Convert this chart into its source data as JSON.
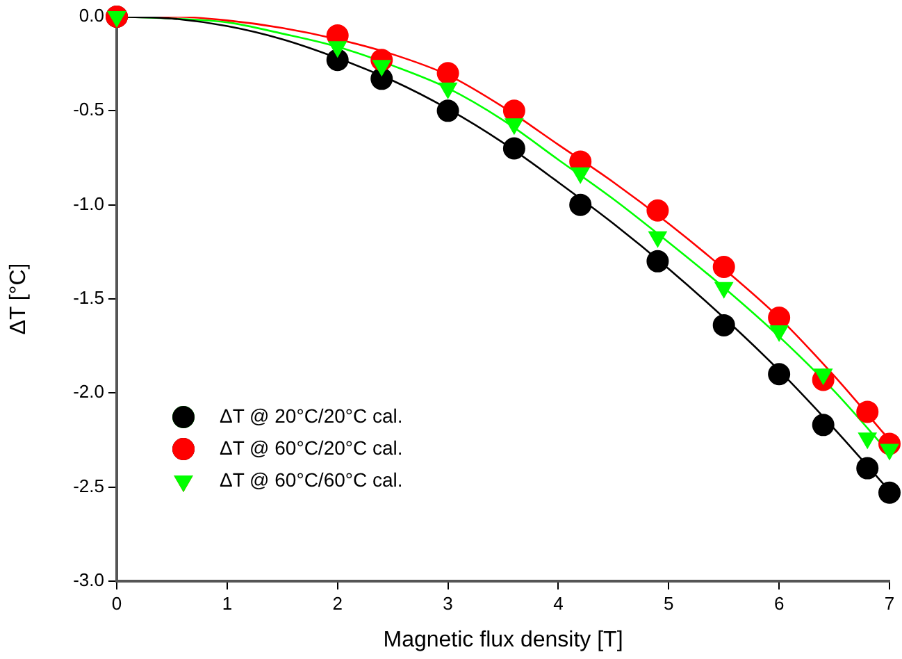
{
  "chart_data": {
    "type": "scatter",
    "xlabel": "Magnetic flux density [T]",
    "ylabel": "ΔT [°C]",
    "xlim": [
      0,
      7
    ],
    "xticks": [
      0,
      1,
      2,
      3,
      4,
      5,
      6,
      7
    ],
    "ylim": [
      -3,
      0
    ],
    "yticks": [
      {
        "value": -3,
        "label": "-3.0"
      },
      {
        "value": -2.5,
        "label": "-2.5"
      },
      {
        "value": -2,
        "label": "-2.0"
      },
      {
        "value": -1.5,
        "label": "-1.5"
      },
      {
        "value": -1,
        "label": "-1.0"
      },
      {
        "value": -0.5,
        "label": "-0.5"
      },
      {
        "value": 0,
        "label": "0.0"
      }
    ],
    "grid": false,
    "legend": "bottom left",
    "series": [
      {
        "type": "line",
        "marker": "none",
        "color": "#000000",
        "x": [
          0,
          0.5,
          1,
          1.5,
          2,
          2.5,
          3,
          3.5,
          4,
          4.5,
          5,
          5.5,
          6,
          6.5,
          7
        ],
        "values": [
          0,
          -0.01,
          -0.05,
          -0.12,
          -0.22,
          -0.34,
          -0.49,
          -0.67,
          -0.88,
          -1.1,
          -1.34,
          -1.6,
          -1.88,
          -2.19,
          -2.52
        ]
      },
      {
        "type": "line",
        "marker": "none",
        "color": "#ff0000",
        "x": [
          0,
          0.5,
          1,
          1.5,
          2,
          2.5,
          3,
          3.5,
          4,
          4.5,
          5,
          5.5,
          6,
          6.5,
          7
        ],
        "values": [
          0,
          0,
          -0.02,
          -0.06,
          -0.12,
          -0.2,
          -0.31,
          -0.48,
          -0.68,
          -0.88,
          -1.1,
          -1.34,
          -1.6,
          -1.91,
          -2.25
        ]
      },
      {
        "type": "line",
        "marker": "none",
        "color": "#00ff00",
        "x": [
          0,
          0.5,
          1,
          1.5,
          2,
          2.5,
          3,
          3.5,
          4,
          4.5,
          5,
          5.5,
          6,
          6.5,
          7
        ],
        "values": [
          0,
          -0.01,
          -0.03,
          -0.09,
          -0.16,
          -0.26,
          -0.38,
          -0.55,
          -0.76,
          -0.97,
          -1.2,
          -1.44,
          -1.7,
          -1.99,
          -2.32
        ]
      },
      {
        "name": "ΔT @ 20°C/20°C cal.",
        "marker": "circle",
        "color": "#000000",
        "x": [
          0,
          2,
          2.4,
          3,
          3.6,
          4.2,
          4.9,
          5.5,
          6,
          6.4,
          6.8,
          7
        ],
        "values": [
          0,
          -0.23,
          -0.33,
          -0.5,
          -0.7,
          -1.0,
          -1.3,
          -1.64,
          -1.9,
          -2.17,
          -2.4,
          -2.53
        ]
      },
      {
        "name": "ΔT @ 60°C/20°C cal.",
        "marker": "circle",
        "color": "#ff0000",
        "x": [
          0,
          2,
          2.4,
          3,
          3.6,
          4.2,
          4.9,
          5.5,
          6,
          6.4,
          6.8,
          7
        ],
        "values": [
          0,
          -0.1,
          -0.23,
          -0.3,
          -0.5,
          -0.77,
          -1.03,
          -1.33,
          -1.6,
          -1.93,
          -2.1,
          -2.27
        ]
      },
      {
        "name": "ΔT @ 60°C/60°C cal.",
        "marker": "triangle",
        "color": "#00ff00",
        "x": [
          0,
          2,
          2.4,
          3,
          3.6,
          4.2,
          4.9,
          5.5,
          6,
          6.4,
          6.8,
          7
        ],
        "values": [
          0,
          -0.16,
          -0.26,
          -0.38,
          -0.57,
          -0.83,
          -1.17,
          -1.44,
          -1.67,
          -1.9,
          -2.24,
          -2.3
        ]
      }
    ]
  }
}
